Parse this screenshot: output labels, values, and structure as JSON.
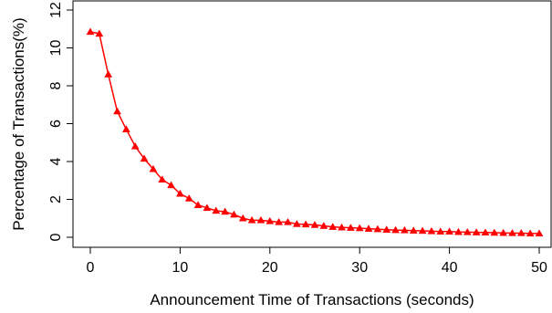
{
  "chart_data": {
    "type": "line",
    "title": "",
    "xlabel": "Announcement Time of Transactions (seconds)",
    "ylabel": "Percentage of Transactions(%)",
    "xlim": [
      0,
      50
    ],
    "ylim": [
      0,
      12
    ],
    "x_ticks": [
      0,
      10,
      20,
      30,
      40,
      50
    ],
    "y_ticks": [
      0,
      2,
      4,
      6,
      8,
      10,
      12
    ],
    "grid": false,
    "legend": "none",
    "series": [
      {
        "color": "#ff0000",
        "marker": "triangle",
        "x": [
          0,
          1,
          2,
          3,
          4,
          5,
          6,
          7,
          8,
          9,
          10,
          11,
          12,
          13,
          14,
          15,
          16,
          17,
          18,
          19,
          20,
          21,
          22,
          23,
          24,
          25,
          26,
          27,
          28,
          29,
          30,
          31,
          32,
          33,
          34,
          35,
          36,
          37,
          38,
          39,
          40,
          41,
          42,
          43,
          44,
          45,
          46,
          47,
          48,
          49,
          50
        ],
        "values": [
          10.85,
          10.75,
          8.6,
          6.65,
          5.7,
          4.8,
          4.15,
          3.6,
          3.05,
          2.75,
          2.3,
          2.05,
          1.7,
          1.55,
          1.4,
          1.35,
          1.2,
          1.0,
          0.9,
          0.9,
          0.85,
          0.8,
          0.8,
          0.7,
          0.68,
          0.65,
          0.6,
          0.55,
          0.52,
          0.5,
          0.48,
          0.45,
          0.43,
          0.4,
          0.38,
          0.37,
          0.35,
          0.34,
          0.32,
          0.3,
          0.3,
          0.28,
          0.27,
          0.26,
          0.25,
          0.24,
          0.23,
          0.22,
          0.22,
          0.2,
          0.2
        ]
      }
    ]
  }
}
